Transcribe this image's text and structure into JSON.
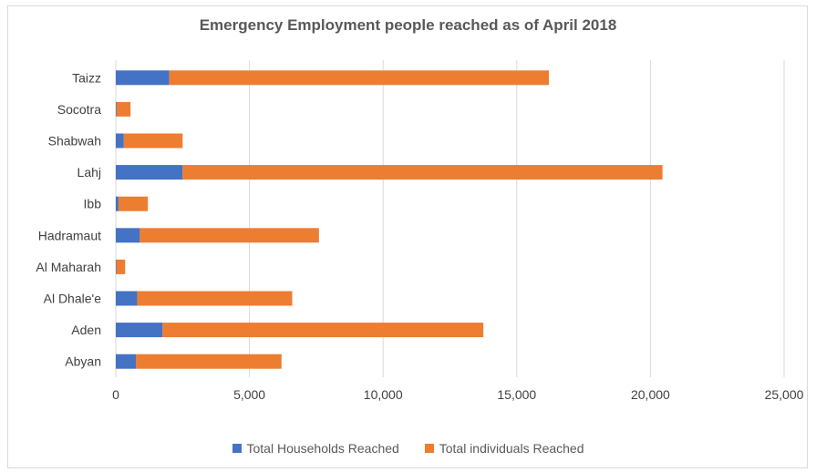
{
  "chart_data": {
    "type": "bar",
    "orientation": "horizontal",
    "stacked": true,
    "title": "Emergency Employment people reached as of April 2018",
    "categories": [
      "Taizz",
      "Socotra",
      "Shabwah",
      "Lahj",
      "Ibb",
      "Hadramaut",
      "Al Maharah",
      "Al Dhale'e",
      "Aden",
      "Abyan"
    ],
    "series": [
      {
        "name": "Total Households Reached",
        "color": "#4472C4",
        "values": [
          2000,
          30,
          300,
          2500,
          100,
          900,
          20,
          800,
          1750,
          750
        ]
      },
      {
        "name": "Total individuals Reached",
        "color": "#ED7D31",
        "values": [
          14200,
          520,
          2200,
          17950,
          1100,
          6700,
          330,
          5800,
          12000,
          5450
        ]
      }
    ],
    "xlim": [
      0,
      25000
    ],
    "xticks": [
      0,
      5000,
      10000,
      15000,
      20000,
      25000
    ],
    "xtick_labels": [
      "0",
      "5,000",
      "10,000",
      "15,000",
      "20,000",
      "25,000"
    ],
    "grid": "vertical",
    "legend_position": "bottom"
  }
}
